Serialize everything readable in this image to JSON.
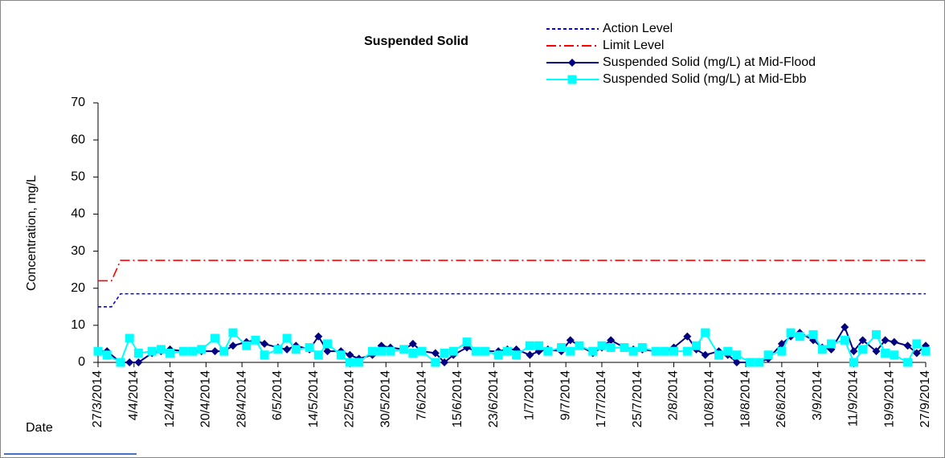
{
  "chart_data": {
    "type": "line",
    "title": "Suspended Solid",
    "y_label": "Concentration, mg/L",
    "x_label": "Date",
    "ylim": [
      0,
      70
    ],
    "yticks": [
      0,
      10,
      20,
      30,
      40,
      50,
      60,
      70
    ],
    "xlim": [
      "27/3/2014",
      "27/9/2014"
    ],
    "xticks": [
      "27/3/2014",
      "4/4/2014",
      "12/4/2014",
      "20/4/2014",
      "28/4/2014",
      "6/5/2014",
      "14/5/2014",
      "22/5/2014",
      "30/5/2014",
      "7/6/2014",
      "15/6/2014",
      "23/6/2014",
      "1/7/2014",
      "9/7/2014",
      "17/7/2014",
      "25/7/2014",
      "2/8/2014",
      "10/8/2014",
      "18/8/2014",
      "26/8/2014",
      "3/9/2014",
      "11/9/2014",
      "19/9/2014",
      "27/9/2014"
    ],
    "x": [
      "27/3/2014",
      "29/3/2014",
      "1/4/2014",
      "3/4/2014",
      "5/4/2014",
      "8/4/2014",
      "10/4/2014",
      "12/4/2014",
      "15/4/2014",
      "17/4/2014",
      "19/4/2014",
      "22/4/2014",
      "24/4/2014",
      "26/4/2014",
      "29/4/2014",
      "1/5/2014",
      "3/5/2014",
      "6/5/2014",
      "8/5/2014",
      "10/5/2014",
      "13/5/2014",
      "15/5/2014",
      "17/5/2014",
      "20/5/2014",
      "22/5/2014",
      "24/5/2014",
      "27/5/2014",
      "29/5/2014",
      "31/5/2014",
      "3/6/2014",
      "5/6/2014",
      "7/6/2014",
      "10/6/2014",
      "12/6/2014",
      "14/6/2014",
      "17/6/2014",
      "19/6/2014",
      "21/6/2014",
      "24/6/2014",
      "26/6/2014",
      "28/6/2014",
      "1/7/2014",
      "3/7/2014",
      "5/7/2014",
      "8/7/2014",
      "10/7/2014",
      "12/7/2014",
      "15/7/2014",
      "17/7/2014",
      "19/7/2014",
      "22/7/2014",
      "24/7/2014",
      "26/7/2014",
      "29/7/2014",
      "31/7/2014",
      "2/8/2014",
      "5/8/2014",
      "7/8/2014",
      "9/8/2014",
      "12/8/2014",
      "14/8/2014",
      "16/8/2014",
      "19/8/2014",
      "21/8/2014",
      "23/8/2014",
      "26/8/2014",
      "28/8/2014",
      "30/8/2014",
      "2/9/2014",
      "4/9/2014",
      "6/9/2014",
      "9/9/2014",
      "11/9/2014",
      "13/9/2014",
      "16/9/2014",
      "18/9/2014",
      "20/9/2014",
      "23/9/2014",
      "25/9/2014",
      "27/9/2014"
    ],
    "series": [
      {
        "name": "Action Level",
        "color": "#0000ff",
        "style": "dashed",
        "x": [
          "27/3/2014",
          "30/3/2014",
          "1/4/2014",
          "27/9/2014"
        ],
        "values": [
          15,
          15,
          18.5,
          18.5
        ]
      },
      {
        "name": "Limit Level",
        "color": "#ff0000",
        "style": "dash-dot",
        "x": [
          "27/3/2014",
          "30/3/2014",
          "1/4/2014",
          "27/9/2014"
        ],
        "values": [
          22,
          22,
          27.5,
          27.5
        ]
      },
      {
        "name": "Suspended Solid (mg/L) at Mid-Flood",
        "color": "#000080",
        "style": "solid",
        "marker": "diamond",
        "values": [
          3,
          3,
          0,
          0,
          0,
          2.5,
          3,
          3.5,
          3,
          3,
          3,
          3,
          3,
          4.5,
          5.5,
          6,
          5,
          4,
          3.5,
          4.5,
          3.5,
          7,
          3,
          3,
          2,
          1,
          2,
          4.5,
          4,
          3.5,
          5,
          3,
          2.5,
          0,
          2,
          4,
          3,
          3,
          3,
          3.5,
          3.5,
          2,
          3,
          3.5,
          3,
          6,
          4.5,
          2.5,
          4,
          6,
          4,
          3.5,
          3.5,
          3,
          3,
          4,
          7,
          3.5,
          2,
          3,
          2,
          0,
          0,
          0,
          1,
          5,
          7,
          8,
          6,
          4,
          3.5,
          9.5,
          3,
          6,
          3,
          6,
          5.5,
          4.5,
          2.5,
          4.5
        ]
      },
      {
        "name": "Suspended Solid (mg/L) at Mid-Ebb",
        "color": "#00ffff",
        "style": "solid",
        "marker": "square",
        "values": [
          3,
          2,
          0,
          6.5,
          2.5,
          3,
          3.5,
          2.5,
          3,
          3,
          3.5,
          6.5,
          3,
          8,
          4.5,
          6,
          2,
          3.5,
          6.5,
          3.5,
          4,
          2,
          5,
          2,
          0,
          0,
          3,
          3,
          3,
          3.5,
          2.5,
          3,
          0,
          2.5,
          3,
          5.5,
          3,
          3,
          2,
          3,
          2,
          4.5,
          4.5,
          3,
          4,
          3,
          4.5,
          3,
          4.5,
          4,
          4,
          3,
          4,
          3,
          3,
          3,
          3,
          4.5,
          8,
          2,
          3,
          2,
          0,
          0,
          2,
          3,
          8,
          7,
          7.5,
          3.5,
          5,
          6,
          0,
          3.5,
          7.5,
          2.5,
          2,
          0,
          5,
          3
        ]
      }
    ]
  }
}
